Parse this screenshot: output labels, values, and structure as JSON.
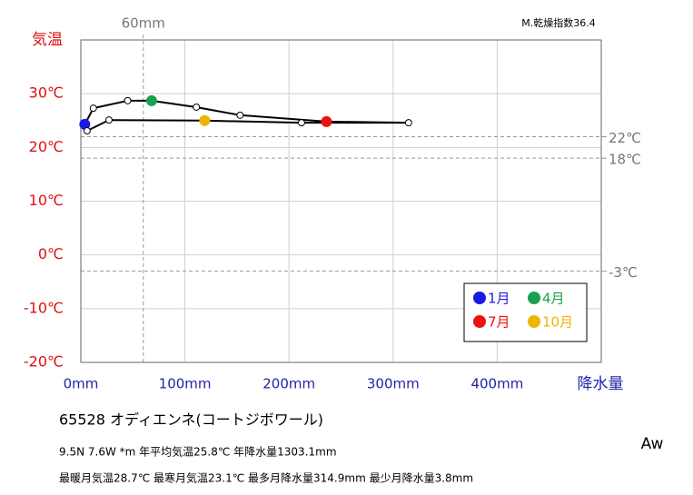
{
  "chart_data": {
    "type": "scatter",
    "top_label": "M.乾燥指数36.4",
    "ylabel": "気温",
    "xlabel": "降水量",
    "x": [
      3.8,
      12,
      45,
      68,
      111,
      153,
      236,
      314.9,
      212,
      119,
      27,
      6
    ],
    "values": [
      24.3,
      27.3,
      28.7,
      28.7,
      27.5,
      26.0,
      24.8,
      24.6,
      24.6,
      25.0,
      25.1,
      23.1
    ],
    "point_colors": [
      "#1a1ae6",
      "#ffffff",
      "#ffffff",
      "#1aa050",
      "#ffffff",
      "#ffffff",
      "#ee1111",
      "#ffffff",
      "#ffffff",
      "#f0b400",
      "#ffffff",
      "#ffffff"
    ],
    "line_color": "#000000",
    "xlim": [
      0,
      500
    ],
    "ylim": [
      -20,
      40
    ],
    "xticks": [
      {
        "value": 0,
        "label": "0mm"
      },
      {
        "value": 100,
        "label": "100mm"
      },
      {
        "value": 200,
        "label": "200mm"
      },
      {
        "value": 300,
        "label": "300mm"
      },
      {
        "value": 400,
        "label": "400mm"
      }
    ],
    "yticks": [
      {
        "value": -20,
        "label": "-20℃"
      },
      {
        "value": -10,
        "label": "-10℃"
      },
      {
        "value": 0,
        "label": "0℃"
      },
      {
        "value": 10,
        "label": "10℃"
      },
      {
        "value": 20,
        "label": "20℃"
      },
      {
        "value": 30,
        "label": "30℃"
      }
    ],
    "grid": true,
    "y_refs": [
      {
        "value": 22,
        "label": "22℃"
      },
      {
        "value": 18,
        "label": "18℃"
      },
      {
        "value": -3,
        "label": "-3℃"
      }
    ],
    "x_refs": [
      {
        "value": 60,
        "label": "60mm"
      }
    ],
    "legend": [
      {
        "label": "1月",
        "color": "#1a1ae6"
      },
      {
        "label": "4月",
        "color": "#1aa050"
      },
      {
        "label": "7月",
        "color": "#ee1111"
      },
      {
        "label": "10月",
        "color": "#f0b400"
      }
    ],
    "station": "65528  オディエンネ(コートジボワール)",
    "info1": "9.5N  7.6W *m  年平均気温25.8℃ 年降水量1303.1mm",
    "info2": "最暖月気温28.7℃ 最寒月気温23.1℃ 最多月降水量314.9mm 最少月降水量3.8mm",
    "climate": "Aw"
  }
}
